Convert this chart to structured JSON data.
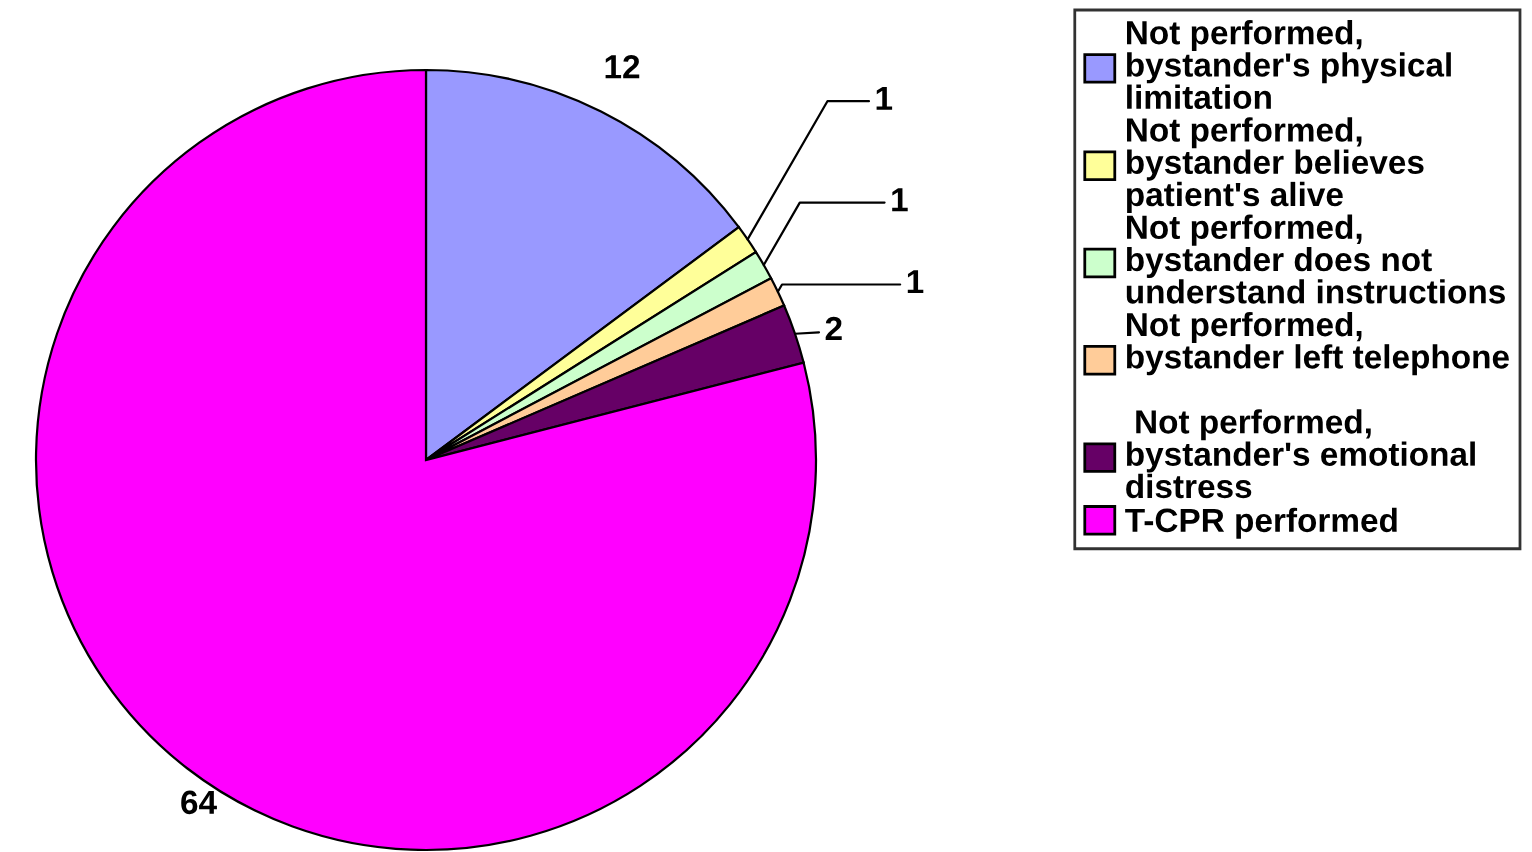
{
  "chart_data": {
    "type": "pie",
    "categories": [
      "Not performed,\nbystander's physical\nlimitation",
      "Not performed,\nbystander believes\npatient's alive",
      "Not performed,\nbystander does not\nunderstand instructions",
      "Not performed,\nbystander left telephone\n",
      " Not performed,\nbystander's emotional\ndistress",
      "T-CPR performed"
    ],
    "values": [
      12,
      1,
      1,
      1,
      2,
      64
    ],
    "colors": [
      "#9999ff",
      "#ffff99",
      "#ccffcc",
      "#ffcc99",
      "#660066",
      "#ff00ff"
    ],
    "data_labels": true,
    "legend": "right"
  }
}
